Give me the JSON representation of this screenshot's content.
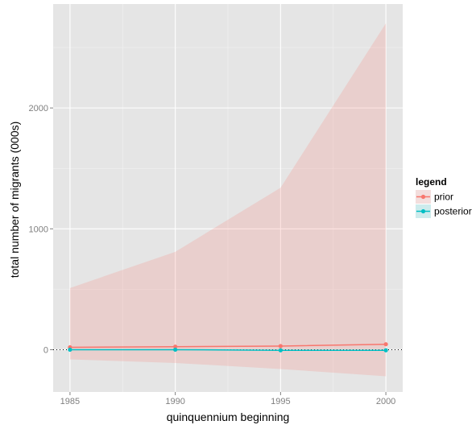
{
  "chart_data": {
    "type": "line",
    "xlabel": "quinquennium beginning",
    "ylabel": "total number of migrants (000s)",
    "x": [
      1985,
      1990,
      1995,
      2000
    ],
    "xlim": [
      1984.2,
      2000.8
    ],
    "ylim": [
      -350,
      2860
    ],
    "x_ticks": [
      1985,
      1990,
      1995,
      2000
    ],
    "y_ticks": [
      0,
      1000,
      2000
    ],
    "x_tick_labels": [
      "1985",
      "1990",
      "1995",
      "2000"
    ],
    "y_tick_labels": [
      "0",
      "1000",
      "2000"
    ],
    "grid": true,
    "reference_line": {
      "y": 0,
      "style": "dotted"
    },
    "legend": {
      "title": "legend",
      "position": "right",
      "entries": [
        "prior",
        "posterior"
      ]
    },
    "series": [
      {
        "name": "prior",
        "color": "#F8766D",
        "values": [
          20,
          25,
          30,
          45
        ],
        "band_lower": [
          -80,
          -110,
          -160,
          -220
        ],
        "band_upper": [
          510,
          810,
          1340,
          2700
        ]
      },
      {
        "name": "posterior",
        "color": "#00BFC4",
        "values": [
          0,
          0,
          -5,
          -5
        ],
        "band_lower": [
          -2,
          -2,
          -8,
          -8
        ],
        "band_upper": [
          2,
          2,
          -2,
          -2
        ]
      }
    ]
  }
}
